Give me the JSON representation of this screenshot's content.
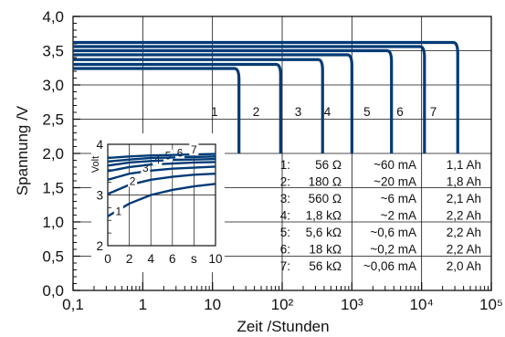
{
  "chart_data": [
    {
      "type": "line",
      "title": "",
      "xlabel": "Zeit /Stunden",
      "ylabel": "Spannung /V",
      "x_scale": "log",
      "xlim": [
        0.1,
        100000
      ],
      "ylim": [
        0.0,
        4.0
      ],
      "x_tick_labels": [
        "0,1",
        "1",
        "10",
        "10²",
        "10³",
        "10⁴",
        "10⁵"
      ],
      "y_tick_labels": [
        "0,0",
        "0,5",
        "1,0",
        "1,5",
        "2,0",
        "2,5",
        "3,0",
        "3,5",
        "4,0"
      ],
      "grid": true,
      "series": [
        {
          "name": "1",
          "voltage": 3.24,
          "end_hours": 24
        },
        {
          "name": "2",
          "voltage": 3.3,
          "end_hours": 95
        },
        {
          "name": "3",
          "voltage": 3.37,
          "end_hours": 380
        },
        {
          "name": "4",
          "voltage": 3.44,
          "end_hours": 1000
        },
        {
          "name": "5",
          "voltage": 3.5,
          "end_hours": 3700
        },
        {
          "name": "6",
          "voltage": 3.56,
          "end_hours": 11000
        },
        {
          "name": "7",
          "voltage": 3.62,
          "end_hours": 33000
        }
      ],
      "legend_table": [
        [
          "1:",
          "56 Ω",
          "~60 mA",
          "1,1 Ah"
        ],
        [
          "2:",
          "180 Ω",
          "~20 mA",
          "1,8 Ah"
        ],
        [
          "3:",
          "560 Ω",
          "~6 mA",
          "2,1 Ah"
        ],
        [
          "4:",
          "1,8 kΩ",
          "~2 mA",
          "2,2 Ah"
        ],
        [
          "5:",
          "5,6 kΩ",
          "~0,6 mA",
          "2,2 Ah"
        ],
        [
          "6:",
          "18 kΩ",
          "~0,2 mA",
          "2,2 Ah"
        ],
        [
          "7:",
          "56 kΩ",
          "~0,06 mA",
          "2,0 Ah"
        ]
      ]
    },
    {
      "type": "line",
      "title": "",
      "xlabel": "s",
      "ylabel": "Volt",
      "xlim": [
        0,
        10
      ],
      "ylim": [
        2,
        4
      ],
      "x_tick_labels": [
        "0",
        "2",
        "4",
        "6",
        "s",
        "10"
      ],
      "y_tick_labels": [
        "2",
        "3",
        "4"
      ],
      "grid": true,
      "series": [
        {
          "name": "1",
          "x": [
            0,
            2,
            4,
            6,
            8,
            10
          ],
          "y": [
            2.58,
            2.83,
            3.0,
            3.1,
            3.17,
            3.22
          ]
        },
        {
          "name": "2",
          "x": [
            0,
            2,
            4,
            6,
            8,
            10
          ],
          "y": [
            3.02,
            3.2,
            3.3,
            3.36,
            3.4,
            3.42
          ]
        },
        {
          "name": "3",
          "x": [
            0,
            2,
            4,
            6,
            8,
            10
          ],
          "y": [
            3.3,
            3.42,
            3.48,
            3.52,
            3.54,
            3.56
          ]
        },
        {
          "name": "4",
          "x": [
            0,
            2,
            4,
            6,
            8,
            10
          ],
          "y": [
            3.47,
            3.55,
            3.6,
            3.62,
            3.64,
            3.65
          ]
        },
        {
          "name": "5",
          "x": [
            0,
            2,
            4,
            6,
            8,
            10
          ],
          "y": [
            3.58,
            3.64,
            3.67,
            3.69,
            3.7,
            3.71
          ]
        },
        {
          "name": "6",
          "x": [
            0,
            2,
            4,
            6,
            8,
            10
          ],
          "y": [
            3.66,
            3.7,
            3.73,
            3.74,
            3.75,
            3.76
          ]
        },
        {
          "name": "7",
          "x": [
            0,
            2,
            4,
            6,
            8,
            10
          ],
          "y": [
            3.73,
            3.76,
            3.78,
            3.79,
            3.8,
            3.81
          ]
        }
      ]
    }
  ],
  "colors": {
    "series": "#003a75",
    "grid": "#111111",
    "axis": "#111111"
  }
}
